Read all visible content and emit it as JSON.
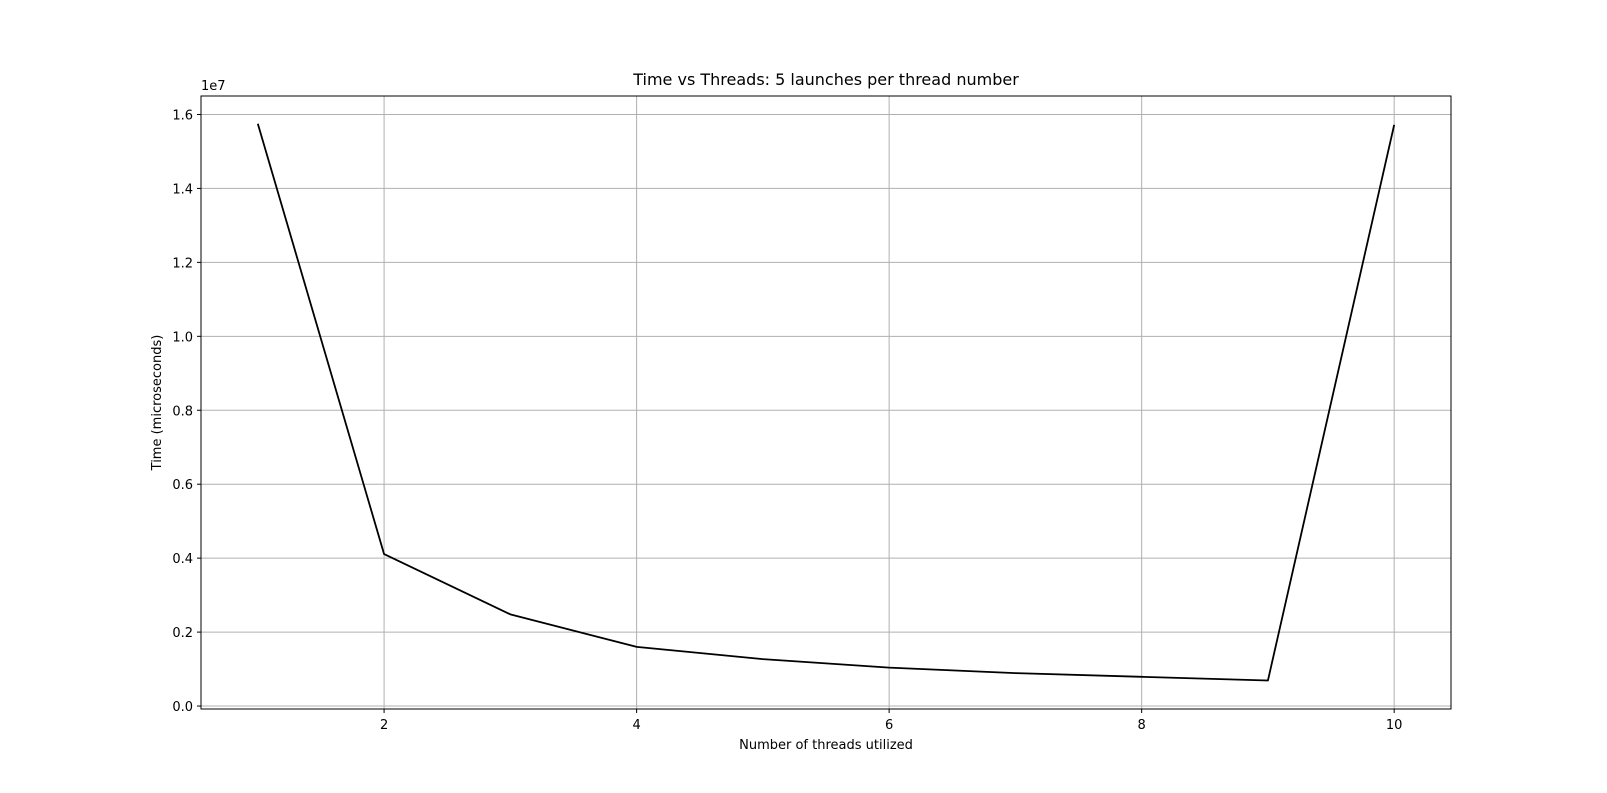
{
  "chart_data": {
    "type": "line",
    "title": "Time vs Threads: 5 launches per thread number",
    "xlabel": "Number of threads utilized",
    "ylabel": "Time (microseconds)",
    "y_offset_label": "1e7",
    "xlim": [
      0.55,
      10.45
    ],
    "ylim": [
      -0.008,
      1.65
    ],
    "y_scale_factor": 10000000,
    "x_ticks": [
      2,
      4,
      6,
      8,
      10
    ],
    "x_tick_labels": [
      "2",
      "4",
      "6",
      "8",
      "10"
    ],
    "y_ticks": [
      0.0,
      0.2,
      0.4,
      0.6,
      0.8,
      1.0,
      1.2,
      1.4,
      1.6
    ],
    "y_tick_labels": [
      "0.0",
      "0.2",
      "0.4",
      "0.6",
      "0.8",
      "1.0",
      "1.2",
      "1.4",
      "1.6"
    ],
    "grid": true,
    "series": [
      {
        "x": [
          1,
          2,
          3,
          4,
          5,
          6,
          7,
          8,
          9,
          10
        ],
        "y": [
          15750000,
          4110000,
          2480000,
          1600000,
          1270000,
          1040000,
          890000,
          790000,
          690000,
          15720000
        ],
        "color": "#000000"
      }
    ]
  }
}
